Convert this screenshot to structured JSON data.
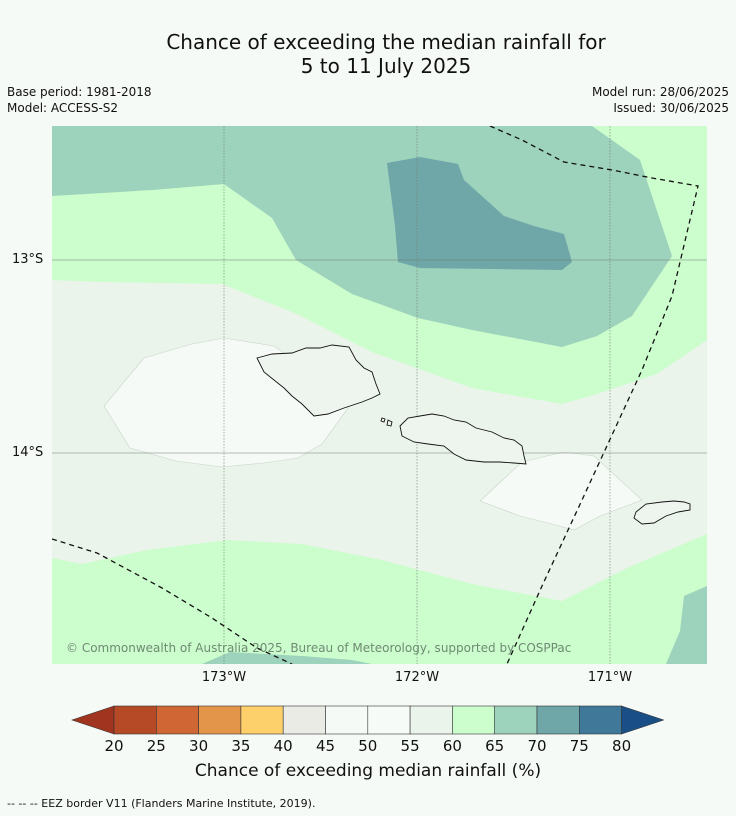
{
  "title": {
    "line1": "Chance of exceeding the median rainfall for",
    "line2": "5 to 11 July 2025"
  },
  "meta": {
    "base_period": "Base period: 1981-2018",
    "model": "Model: ACCESS-S2",
    "model_run": "Model run: 28/06/2025",
    "issued": "Issued: 30/06/2025"
  },
  "map": {
    "lat_labels": [
      "13°S",
      "14°S"
    ],
    "lon_labels": [
      "173°W",
      "172°W",
      "171°W"
    ],
    "copyright": "© Commonwealth of Australia 2025, Bureau of Meteorology, supported by COSPPac"
  },
  "legend": {
    "labels": [
      "20",
      "25",
      "30",
      "35",
      "40",
      "45",
      "50",
      "55",
      "60",
      "65",
      "70",
      "75",
      "80"
    ],
    "colors": [
      "#a0341f",
      "#b64a27",
      "#cf6634",
      "#e39549",
      "#fdd06b",
      "#ebebe6",
      "#f6faf6",
      "#f7fbf7",
      "#eaf4ea",
      "#ccfdcc",
      "#9dd2bc",
      "#6fa6a8",
      "#3f7899",
      "#194f86"
    ],
    "title": "Chance of exceeding median rainfall (%)"
  },
  "footnote": "--  --  -- EEZ border V11 (Flanders Marine Institute, 2019)."
}
